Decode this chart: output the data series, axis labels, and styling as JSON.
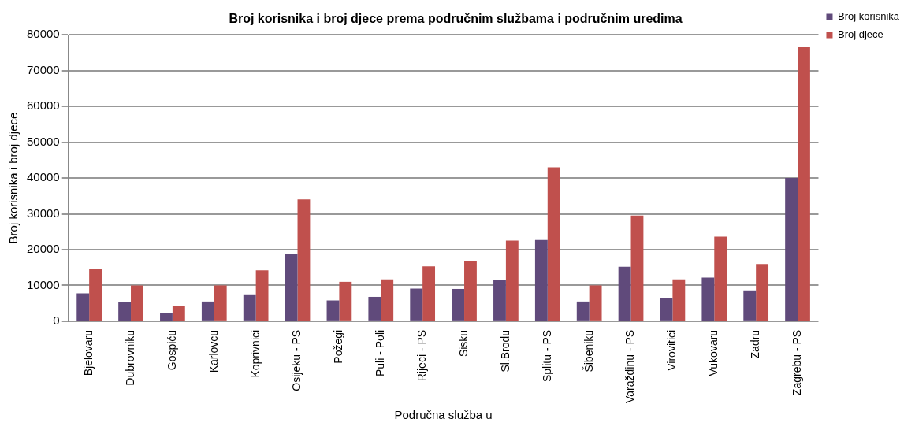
{
  "chart_data": {
    "type": "bar",
    "title": "Broj korisnika i broj djece prema područnim službama i područnim uredima",
    "xlabel": "Područna služba u",
    "ylabel": "Broj korisnika i broj djece",
    "categories": [
      "Bjelovaru",
      "Dubrovniku",
      "Gospiću",
      "Karlovcu",
      "Koprivnici",
      "Osijeku - PS",
      "Požegi",
      "Puli - Poli",
      "Rijeci - PS",
      "Sisku",
      "Sl.Brodu",
      "Splitu - PS",
      "Šibeniku",
      "Varaždinu - PS",
      "Virovitici",
      "Vukovaru",
      "Zadru",
      "Zagrebu - PS"
    ],
    "series": [
      {
        "name": "Broj korisnika",
        "color": "#604a7b",
        "values": [
          7800,
          5300,
          2300,
          5500,
          7500,
          18800,
          5800,
          6800,
          9100,
          9000,
          11600,
          22700,
          5500,
          15200,
          6400,
          12200,
          8600,
          40000
        ]
      },
      {
        "name": "Broj djece",
        "color": "#c0504d",
        "values": [
          14500,
          10000,
          4200,
          10000,
          14200,
          34000,
          11000,
          11700,
          15300,
          16800,
          22500,
          43000,
          10000,
          29500,
          11700,
          23600,
          16000,
          76500
        ]
      }
    ],
    "ylim": [
      0,
      80000
    ],
    "yticks": [
      0,
      10000,
      20000,
      30000,
      40000,
      50000,
      60000,
      70000,
      80000
    ],
    "grid": "y",
    "legend": "top right"
  }
}
